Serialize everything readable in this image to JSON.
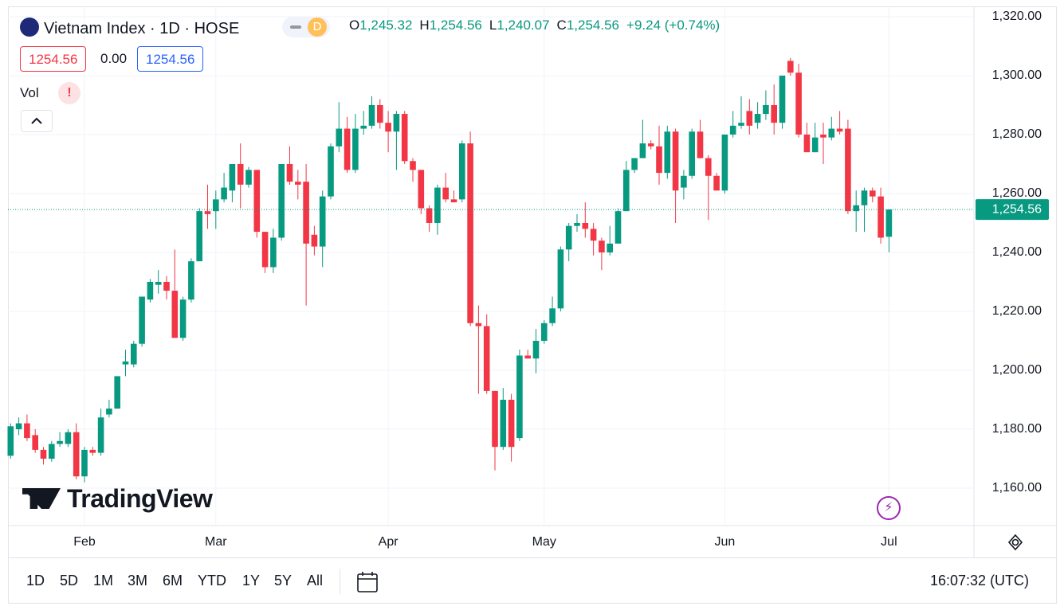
{
  "header": {
    "symbol": "Vietnam Index · 1D · HOSE",
    "badge": "D",
    "ohlc": [
      {
        "key": "O",
        "value": "1,245.32"
      },
      {
        "key": "H",
        "value": "1,254.56"
      },
      {
        "key": "L",
        "value": "1,240.07"
      },
      {
        "key": "C",
        "value": "1,254.56"
      }
    ],
    "change": "+9.24 (+0.74%)",
    "boxes": [
      "1254.56",
      "0.00",
      "1254.56"
    ],
    "indicator": "Vol",
    "indicator_alert": "!"
  },
  "watermark": "TradingView",
  "toolbar": {
    "ranges": [
      "1D",
      "5D",
      "1M",
      "3M",
      "6M",
      "YTD",
      "1Y",
      "5Y",
      "All"
    ],
    "time": "16:07:32 (UTC)"
  },
  "chart_data": {
    "type": "candlestick",
    "up_color": "#089981",
    "down_color": "#f23645",
    "grid": true,
    "categories": [
      null,
      null,
      null,
      null,
      null,
      null,
      null,
      null,
      null,
      "Feb",
      null,
      null,
      null,
      null,
      null,
      null,
      null,
      null,
      null,
      null,
      null,
      null,
      null,
      null,
      null,
      "Mar",
      null,
      null,
      null,
      null,
      null,
      null,
      null,
      null,
      null,
      null,
      null,
      null,
      null,
      null,
      null,
      null,
      null,
      null,
      null,
      null,
      "Apr",
      null,
      null,
      null,
      null,
      null,
      null,
      null,
      null,
      null,
      null,
      null,
      null,
      null,
      null,
      null,
      null,
      null,
      null,
      "May",
      null,
      null,
      null,
      null,
      null,
      null,
      null,
      null,
      null,
      null,
      null,
      null,
      null,
      null,
      null,
      null,
      null,
      null,
      null,
      null,
      null,
      "Jun",
      null,
      null,
      null,
      null,
      null,
      null,
      null,
      null,
      null,
      null,
      null,
      null,
      null,
      null,
      null,
      null,
      null,
      null,
      null,
      "Jul"
    ],
    "open": [
      1171,
      1180,
      1182,
      1178,
      1173,
      1170,
      1175,
      1175,
      1179,
      1164,
      1173,
      1172,
      1185,
      1187,
      1202,
      1202,
      1209,
      1224,
      1229,
      1230,
      1227,
      1211,
      1224,
      1237,
      1254,
      1254,
      1258,
      1261,
      1270,
      1263,
      1268,
      1247,
      1235,
      1245,
      1270,
      1264,
      1264,
      1246,
      1242,
      1259,
      1276,
      1282,
      1268,
      1282,
      1283,
      1290,
      1284,
      1281,
      1287,
      1271,
      1268,
      1255,
      1250,
      1262,
      1258,
      1258,
      1277,
      1216,
      1215,
      1193,
      1174,
      1190,
      1177,
      1205,
      1204,
      1210,
      1216,
      1221,
      1241,
      1249,
      1250,
      1248,
      1244,
      1240,
      1243,
      1254,
      1268,
      1272,
      1277,
      1276,
      1267,
      1281,
      1262,
      1266,
      1281,
      1272,
      1266,
      1261,
      1280,
      1283,
      1288,
      1284,
      1287,
      1290,
      1284,
      1305,
      1301,
      1280,
      1274,
      1280,
      1279,
      1282,
      1282,
      1254,
      1256,
      1261,
      1259,
      1245.32
    ],
    "high": [
      1182,
      1184,
      1185,
      1180,
      1174,
      1176,
      1179,
      1180,
      1182,
      1174,
      1174,
      1187,
      1190,
      1198,
      1207,
      1210,
      1225,
      1231,
      1234,
      1232,
      1241,
      1225,
      1238,
      1255,
      1263,
      1261,
      1267,
      1270,
      1277,
      1269,
      1268,
      1247,
      1248,
      1270,
      1276,
      1268,
      1270,
      1249,
      1261,
      1277,
      1291,
      1286,
      1287,
      1288,
      1293,
      1292,
      1288,
      1288,
      1288,
      1272,
      1268,
      1256,
      1263,
      1267,
      1261,
      1278,
      1281,
      1222,
      1219,
      1193,
      1194,
      1192,
      1207,
      1207,
      1214,
      1217,
      1225,
      1242,
      1250,
      1253,
      1257,
      1250,
      1245,
      1249,
      1255,
      1271,
      1272,
      1285,
      1278,
      1283,
      1283,
      1282,
      1268,
      1282,
      1285,
      1273,
      1267,
      1280,
      1288,
      1293,
      1292,
      1291,
      1295,
      1297,
      1300,
      1306,
      1304,
      1284,
      1284,
      1284,
      1286,
      1288,
      1285,
      1261,
      1262,
      1262,
      1262,
      1254.56
    ],
    "low": [
      1170,
      1178,
      1176,
      1172,
      1168,
      1169,
      1174,
      1174,
      1163,
      1162,
      1171,
      1171,
      1184,
      1187,
      1198,
      1201,
      1208,
      1223,
      1226,
      1224,
      1211,
      1210,
      1223,
      1237,
      1248,
      1248,
      1257,
      1257,
      1255,
      1262,
      1245,
      1233,
      1233,
      1244,
      1263,
      1258,
      1222,
      1239,
      1235,
      1258,
      1274,
      1267,
      1267,
      1280,
      1282,
      1282,
      1274,
      1268,
      1270,
      1264,
      1253,
      1247,
      1246,
      1257,
      1257,
      1257,
      1215,
      1192,
      1192,
      1166,
      1173,
      1169,
      1176,
      1204,
      1199,
      1209,
      1215,
      1220,
      1237,
      1247,
      1245,
      1239,
      1234,
      1239,
      1243,
      1254,
      1267,
      1272,
      1275,
      1263,
      1265,
      1250,
      1258,
      1265,
      1272,
      1251,
      1261,
      1260,
      1279,
      1282,
      1280,
      1282,
      1285,
      1280,
      1282,
      1300,
      1279,
      1274,
      1274,
      1270,
      1278,
      1280,
      1253,
      1247,
      1247,
      1257,
      1243,
      1240.07
    ],
    "close": [
      1181,
      1182,
      1177,
      1173,
      1170,
      1175,
      1176,
      1179,
      1164,
      1173,
      1172,
      1184,
      1187,
      1198,
      1203,
      1209,
      1225,
      1230,
      1230,
      1227,
      1211,
      1224,
      1237,
      1254,
      1253,
      1258,
      1262,
      1270,
      1263,
      1268,
      1247,
      1235,
      1245,
      1270,
      1264,
      1263,
      1243,
      1242,
      1259,
      1276,
      1282,
      1268,
      1282,
      1283,
      1290,
      1284,
      1281,
      1287,
      1271,
      1268,
      1255,
      1250,
      1262,
      1258,
      1257,
      1277,
      1216,
      1215,
      1193,
      1174,
      1190,
      1174,
      1205,
      1204,
      1210,
      1216,
      1221,
      1241,
      1249,
      1250,
      1248,
      1244,
      1240,
      1243,
      1254,
      1268,
      1272,
      1277,
      1276,
      1267,
      1281,
      1261,
      1266,
      1281,
      1272,
      1266,
      1261,
      1280,
      1283,
      1284,
      1283,
      1287,
      1290,
      1284,
      1300,
      1301,
      1280,
      1274,
      1279,
      1279,
      1282,
      1281,
      1254,
      1256,
      1261,
      1259,
      1245,
      1254.56
    ],
    "last_price": {
      "value": 1254.56,
      "label": "1,254.56"
    },
    "ylim": [
      1147.3,
      1323.5
    ],
    "yticks": [
      {
        "value": 1160,
        "label": "1,160.00"
      },
      {
        "value": 1180,
        "label": "1,180.00"
      },
      {
        "value": 1200,
        "label": "1,200.00"
      },
      {
        "value": 1220,
        "label": "1,220.00"
      },
      {
        "value": 1240,
        "label": "1,240.00"
      },
      {
        "value": 1260,
        "label": "1,260.00"
      },
      {
        "value": 1280,
        "label": "1,280.00"
      },
      {
        "value": 1300,
        "label": "1,300.00"
      },
      {
        "value": 1320,
        "label": "1,320.00"
      }
    ]
  }
}
